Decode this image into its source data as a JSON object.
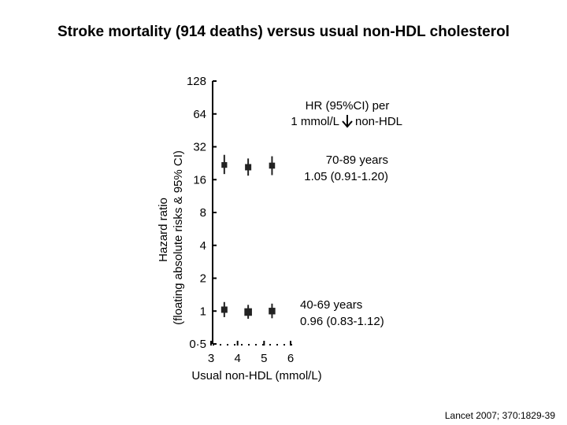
{
  "chart_data": {
    "type": "scatter",
    "title": "Stroke mortality (914 deaths) versus usual non-HDL cholesterol",
    "xlabel": "Usual non-HDL (mmol/L)",
    "ylabel_line1": "Hazard ratio",
    "ylabel_line2": "(floating absolute risks & 95% CI)",
    "y_scale": "log",
    "ylim": [
      0.5,
      128
    ],
    "xlim": [
      3,
      6
    ],
    "y_ticks": [
      {
        "value": 0.5,
        "label": "0·5"
      },
      {
        "value": 1,
        "label": "1"
      },
      {
        "value": 2,
        "label": "2"
      },
      {
        "value": 4,
        "label": "4"
      },
      {
        "value": 8,
        "label": "8"
      },
      {
        "value": 16,
        "label": "16"
      },
      {
        "value": 32,
        "label": "32"
      },
      {
        "value": 64,
        "label": "64"
      },
      {
        "value": 128,
        "label": "128"
      }
    ],
    "x_ticks": [
      {
        "value": 3,
        "label": "3"
      },
      {
        "value": 4,
        "label": "4"
      },
      {
        "value": 5,
        "label": "5"
      },
      {
        "value": 6,
        "label": "6"
      }
    ],
    "series": [
      {
        "points": [
          {
            "x": 3.5,
            "y": 21.8,
            "lo": 18.0,
            "hi": 27.0,
            "weight": 0.9
          },
          {
            "x": 4.4,
            "y": 20.8,
            "lo": 17.4,
            "hi": 25.0,
            "weight": 1.0
          },
          {
            "x": 5.3,
            "y": 21.5,
            "lo": 17.6,
            "hi": 26.2,
            "weight": 0.95
          }
        ]
      },
      {
        "points": [
          {
            "x": 3.5,
            "y": 1.03,
            "lo": 0.88,
            "hi": 1.21,
            "weight": 1.0
          },
          {
            "x": 4.4,
            "y": 0.98,
            "lo": 0.85,
            "hi": 1.14,
            "weight": 1.2
          },
          {
            "x": 5.3,
            "y": 1.0,
            "lo": 0.86,
            "hi": 1.17,
            "weight": 1.05
          }
        ]
      }
    ],
    "annotations": {
      "hr_header_line1": "HR (95%CI) per",
      "hr_header_line2_prefix": "1 mmol/L",
      "hr_header_line2_suffix": "non-HDL",
      "older_line1": "70-89 years",
      "older_line2": "1.05 (0.91-1.20)",
      "younger_line1": "40-69 years",
      "younger_line2": "0.96 (0.83-1.12)"
    },
    "citation": "Lancet 2007; 370:1829-39",
    "colors": {
      "marker": "#222222",
      "axis": "#000000"
    }
  }
}
